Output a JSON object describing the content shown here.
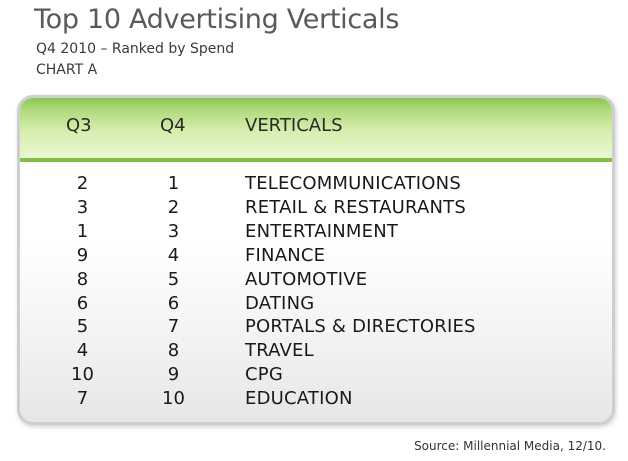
{
  "chart_data": {
    "type": "table",
    "title": "Top 10 Advertising Verticals",
    "subtitle": "Q4 2010 – Ranked by Spend",
    "chart_label": "CHART A",
    "columns": [
      "Q3",
      "Q4",
      "VERTICALS"
    ],
    "rows": [
      {
        "q3": "2",
        "q4": "1",
        "vertical": "TELECOMMUNICATIONS"
      },
      {
        "q3": "3",
        "q4": "2",
        "vertical": "RETAIL & RESTAURANTS"
      },
      {
        "q3": "1",
        "q4": "3",
        "vertical": "ENTERTAINMENT"
      },
      {
        "q3": "9",
        "q4": "4",
        "vertical": "FINANCE"
      },
      {
        "q3": "8",
        "q4": "5",
        "vertical": "AUTOMOTIVE"
      },
      {
        "q3": "6",
        "q4": "6",
        "vertical": "DATING"
      },
      {
        "q3": "5",
        "q4": "7",
        "vertical": "PORTALS & DIRECTORIES"
      },
      {
        "q3": "4",
        "q4": "8",
        "vertical": "TRAVEL"
      },
      {
        "q3": "10",
        "q4": "9",
        "vertical": "CPG"
      },
      {
        "q3": "7",
        "q4": "10",
        "vertical": "EDUCATION"
      }
    ],
    "source": "Source: Millennial Media, 12/10.",
    "colors": {
      "header_green": "#8bc653",
      "border": "#cfcfcf"
    }
  }
}
